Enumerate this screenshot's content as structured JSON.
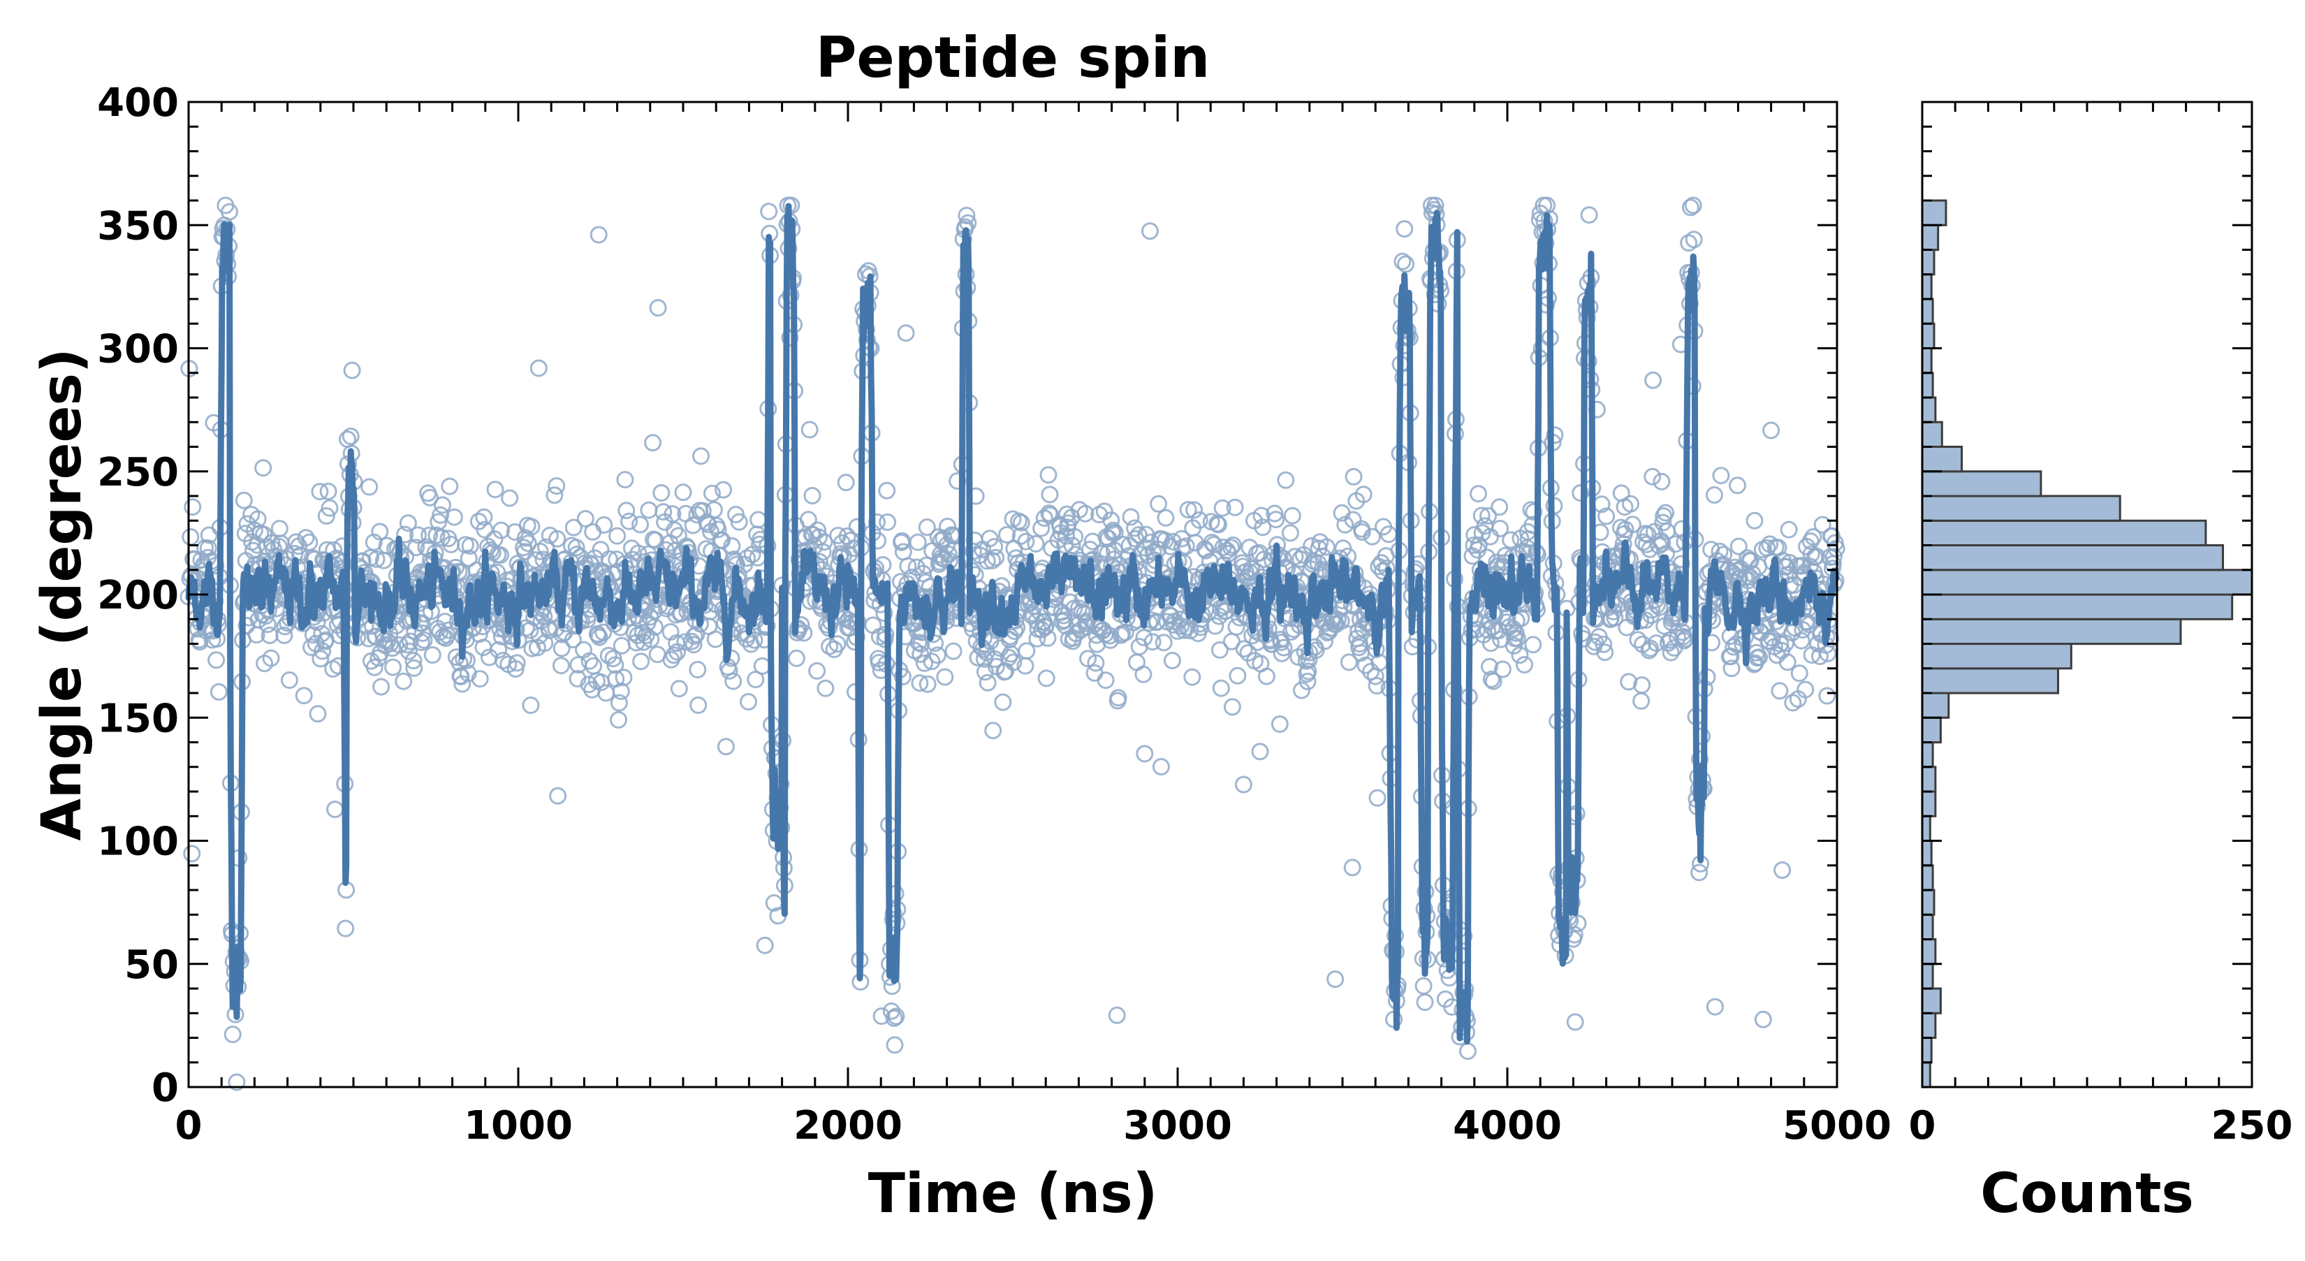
{
  "chart_data": [
    {
      "type": "scatter",
      "name": "time-series",
      "title": "Peptide spin",
      "xlabel": "Time (ns)",
      "ylabel": "Angle (degrees)",
      "xlim": [
        0,
        5000
      ],
      "ylim": [
        0,
        400
      ],
      "xticks": [
        "0",
        "1000",
        "2000",
        "3000",
        "4000",
        "5000"
      ],
      "yticks": [
        "0",
        "50",
        "100",
        "150",
        "200",
        "250",
        "300",
        "350",
        "400"
      ],
      "colors": {
        "marker": "#8fa9c8",
        "line": "#4677ab"
      },
      "series": [
        {
          "name": "angle samples",
          "style": "open-circle markers",
          "n_points": 2500,
          "center": 200,
          "spread_deg": 22
        },
        {
          "name": "smoothed angle",
          "style": "thick line",
          "center": 200
        }
      ],
      "excursions": [
        {
          "t": 95,
          "dur": 45,
          "to": 338
        },
        {
          "t": 125,
          "dur": 40,
          "to": 45
        },
        {
          "t": 470,
          "dur": 35,
          "to": 90
        },
        {
          "t": 480,
          "dur": 25,
          "to": 250
        },
        {
          "t": 1755,
          "dur": 30,
          "to": 335
        },
        {
          "t": 1765,
          "dur": 40,
          "to": 110
        },
        {
          "t": 1800,
          "dur": 40,
          "to": 65
        },
        {
          "t": 1810,
          "dur": 30,
          "to": 345
        },
        {
          "t": 2030,
          "dur": 30,
          "to": 40
        },
        {
          "t": 2040,
          "dur": 35,
          "to": 320
        },
        {
          "t": 2120,
          "dur": 35,
          "to": 50
        },
        {
          "t": 2345,
          "dur": 25,
          "to": 335
        },
        {
          "t": 3640,
          "dur": 60,
          "to": 45
        },
        {
          "t": 3670,
          "dur": 40,
          "to": 320
        },
        {
          "t": 3735,
          "dur": 40,
          "to": 60
        },
        {
          "t": 3760,
          "dur": 45,
          "to": 345
        },
        {
          "t": 3800,
          "dur": 40,
          "to": 55
        },
        {
          "t": 3840,
          "dur": 45,
          "to": 340
        },
        {
          "t": 3850,
          "dur": 35,
          "to": 30
        },
        {
          "t": 4090,
          "dur": 45,
          "to": 340
        },
        {
          "t": 4150,
          "dur": 40,
          "to": 60
        },
        {
          "t": 4180,
          "dur": 40,
          "to": 80
        },
        {
          "t": 4230,
          "dur": 30,
          "to": 320
        },
        {
          "t": 4540,
          "dur": 45,
          "to": 325
        },
        {
          "t": 4570,
          "dur": 30,
          "to": 110
        }
      ]
    },
    {
      "type": "bar",
      "orientation": "horizontal",
      "name": "histogram",
      "xlabel": "Counts",
      "xlim": [
        0,
        250
      ],
      "xticks": [
        "0",
        "250"
      ],
      "bin_width_deg": 10,
      "colors": {
        "fill": "#a3bbd6",
        "edge": "#3c3c3c"
      },
      "bins": [
        {
          "range": [
            0,
            10
          ],
          "count": 6
        },
        {
          "range": [
            10,
            20
          ],
          "count": 7
        },
        {
          "range": [
            20,
            30
          ],
          "count": 10
        },
        {
          "range": [
            30,
            40
          ],
          "count": 14
        },
        {
          "range": [
            40,
            50
          ],
          "count": 8
        },
        {
          "range": [
            50,
            60
          ],
          "count": 10
        },
        {
          "range": [
            60,
            70
          ],
          "count": 8
        },
        {
          "range": [
            70,
            80
          ],
          "count": 9
        },
        {
          "range": [
            80,
            90
          ],
          "count": 8
        },
        {
          "range": [
            90,
            100
          ],
          "count": 7
        },
        {
          "range": [
            100,
            110
          ],
          "count": 6
        },
        {
          "range": [
            110,
            120
          ],
          "count": 10
        },
        {
          "range": [
            120,
            130
          ],
          "count": 10
        },
        {
          "range": [
            130,
            140
          ],
          "count": 8
        },
        {
          "range": [
            140,
            150
          ],
          "count": 14
        },
        {
          "range": [
            150,
            160
          ],
          "count": 20
        },
        {
          "range": [
            160,
            170
          ],
          "count": 103
        },
        {
          "range": [
            170,
            180
          ],
          "count": 113
        },
        {
          "range": [
            180,
            190
          ],
          "count": 196
        },
        {
          "range": [
            190,
            200
          ],
          "count": 235
        },
        {
          "range": [
            200,
            210
          ],
          "count": 250
        },
        {
          "range": [
            210,
            220
          ],
          "count": 228
        },
        {
          "range": [
            220,
            230
          ],
          "count": 215
        },
        {
          "range": [
            230,
            240
          ],
          "count": 150
        },
        {
          "range": [
            240,
            250
          ],
          "count": 90
        },
        {
          "range": [
            250,
            260
          ],
          "count": 30
        },
        {
          "range": [
            260,
            270
          ],
          "count": 15
        },
        {
          "range": [
            270,
            280
          ],
          "count": 10
        },
        {
          "range": [
            280,
            290
          ],
          "count": 8
        },
        {
          "range": [
            290,
            300
          ],
          "count": 7
        },
        {
          "range": [
            300,
            310
          ],
          "count": 9
        },
        {
          "range": [
            310,
            320
          ],
          "count": 8
        },
        {
          "range": [
            320,
            330
          ],
          "count": 7
        },
        {
          "range": [
            330,
            340
          ],
          "count": 9
        },
        {
          "range": [
            340,
            350
          ],
          "count": 12
        },
        {
          "range": [
            350,
            360
          ],
          "count": 18
        }
      ]
    }
  ]
}
